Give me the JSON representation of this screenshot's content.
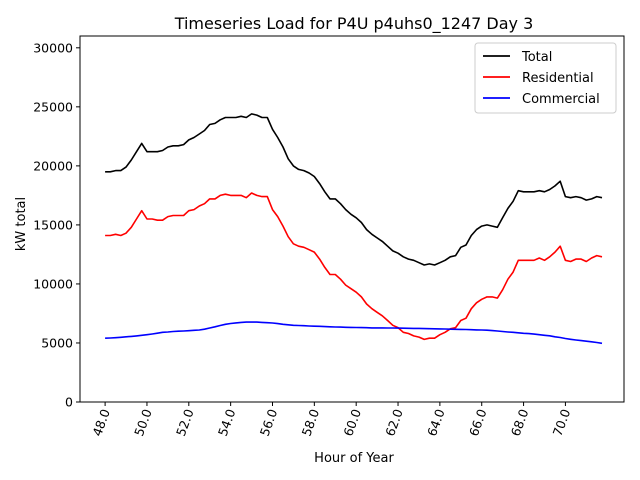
{
  "chart_data": {
    "type": "line",
    "title": "Timeseries Load for P4U p4uhs0_1247  Day 3",
    "xlabel": "Hour of Year",
    "ylabel": "kW total",
    "xlim": [
      46.8,
      72.8
    ],
    "ylim": [
      0,
      31000
    ],
    "xticks": [
      48,
      50,
      52,
      54,
      56,
      58,
      60,
      62,
      64,
      66,
      68,
      70
    ],
    "xtick_labels": [
      "48.0",
      "50.0",
      "52.0",
      "54.0",
      "56.0",
      "58.0",
      "60.0",
      "62.0",
      "64.0",
      "66.0",
      "68.0",
      "70.0"
    ],
    "yticks": [
      0,
      5000,
      10000,
      15000,
      20000,
      25000,
      30000
    ],
    "ytick_labels": [
      "0",
      "5000",
      "10000",
      "15000",
      "20000",
      "25000",
      "30000"
    ],
    "legend_position": "top-right",
    "grid": false,
    "x": [
      48.0,
      48.25,
      48.5,
      48.75,
      49.0,
      49.25,
      49.5,
      49.75,
      50.0,
      50.25,
      50.5,
      50.75,
      51.0,
      51.25,
      51.5,
      51.75,
      52.0,
      52.25,
      52.5,
      52.75,
      53.0,
      53.25,
      53.5,
      53.75,
      54.0,
      54.25,
      54.5,
      54.75,
      55.0,
      55.25,
      55.5,
      55.75,
      56.0,
      56.25,
      56.5,
      56.75,
      57.0,
      57.25,
      57.5,
      57.75,
      58.0,
      58.25,
      58.5,
      58.75,
      59.0,
      59.25,
      59.5,
      59.75,
      60.0,
      60.25,
      60.5,
      60.75,
      61.0,
      61.25,
      61.5,
      61.75,
      62.0,
      62.25,
      62.5,
      62.75,
      63.0,
      63.25,
      63.5,
      63.75,
      64.0,
      64.25,
      64.5,
      64.75,
      65.0,
      65.25,
      65.5,
      65.75,
      66.0,
      66.25,
      66.5,
      66.75,
      67.0,
      67.25,
      67.5,
      67.75,
      68.0,
      68.25,
      68.5,
      68.75,
      69.0,
      69.25,
      69.5,
      69.75,
      70.0,
      70.25,
      70.5,
      70.75,
      71.0,
      71.25,
      71.5,
      71.75
    ],
    "series": [
      {
        "name": "Total",
        "color": "#000000",
        "values": [
          19500,
          19500,
          19600,
          19600,
          19900,
          20500,
          21200,
          21900,
          21200,
          21200,
          21200,
          21300,
          21600,
          21700,
          21700,
          21800,
          22200,
          22400,
          22700,
          23000,
          23500,
          23600,
          23900,
          24100,
          24100,
          24100,
          24200,
          24100,
          24400,
          24300,
          24100,
          24100,
          23100,
          22400,
          21600,
          20600,
          20000,
          19700,
          19600,
          19400,
          19100,
          18500,
          17800,
          17200,
          17200,
          16800,
          16300,
          15900,
          15600,
          15200,
          14600,
          14200,
          13900,
          13600,
          13200,
          12800,
          12600,
          12300,
          12100,
          12000,
          11800,
          11600,
          11700,
          11600,
          11800,
          12000,
          12300,
          12400,
          13100,
          13300,
          14100,
          14600,
          14900,
          15000,
          14900,
          14800,
          15600,
          16400,
          17000,
          17900,
          17800,
          17800,
          17800,
          17900,
          17800,
          18000,
          18300,
          18700,
          17400,
          17300,
          17400,
          17300,
          17100,
          17200,
          17400,
          17300
        ]
      },
      {
        "name": "Residential",
        "color": "#ff0000",
        "values": [
          14100,
          14100,
          14200,
          14100,
          14300,
          14800,
          15500,
          16200,
          15500,
          15500,
          15400,
          15400,
          15700,
          15800,
          15800,
          15800,
          16200,
          16300,
          16600,
          16800,
          17200,
          17200,
          17500,
          17600,
          17500,
          17500,
          17500,
          17300,
          17700,
          17500,
          17400,
          17400,
          16300,
          15700,
          14900,
          14000,
          13400,
          13200,
          13100,
          12900,
          12700,
          12100,
          11400,
          10800,
          10800,
          10400,
          9900,
          9600,
          9300,
          8900,
          8300,
          7900,
          7600,
          7300,
          6900,
          6500,
          6300,
          5900,
          5800,
          5600,
          5500,
          5300,
          5400,
          5400,
          5700,
          5900,
          6200,
          6300,
          6900,
          7100,
          7900,
          8400,
          8700,
          8900,
          8900,
          8800,
          9500,
          10400,
          11000,
          12000,
          12000,
          12000,
          12000,
          12200,
          12000,
          12300,
          12700,
          13200,
          12000,
          11900,
          12100,
          12100,
          11900,
          12200,
          12400,
          12300
        ]
      },
      {
        "name": "Commercial",
        "color": "#0000ff",
        "values": [
          5400,
          5420,
          5450,
          5480,
          5520,
          5560,
          5600,
          5650,
          5700,
          5760,
          5830,
          5900,
          5930,
          5970,
          6000,
          6010,
          6040,
          6070,
          6100,
          6170,
          6270,
          6370,
          6480,
          6580,
          6650,
          6700,
          6740,
          6770,
          6780,
          6770,
          6740,
          6720,
          6690,
          6640,
          6580,
          6540,
          6500,
          6480,
          6460,
          6440,
          6420,
          6410,
          6390,
          6370,
          6350,
          6340,
          6330,
          6320,
          6310,
          6300,
          6290,
          6280,
          6280,
          6280,
          6270,
          6270,
          6260,
          6250,
          6240,
          6230,
          6230,
          6220,
          6210,
          6200,
          6190,
          6180,
          6170,
          6160,
          6150,
          6140,
          6120,
          6110,
          6100,
          6080,
          6050,
          6010,
          5970,
          5930,
          5900,
          5860,
          5820,
          5790,
          5750,
          5700,
          5650,
          5610,
          5520,
          5460,
          5380,
          5310,
          5250,
          5200,
          5150,
          5100,
          5040,
          4970
        ]
      }
    ]
  }
}
